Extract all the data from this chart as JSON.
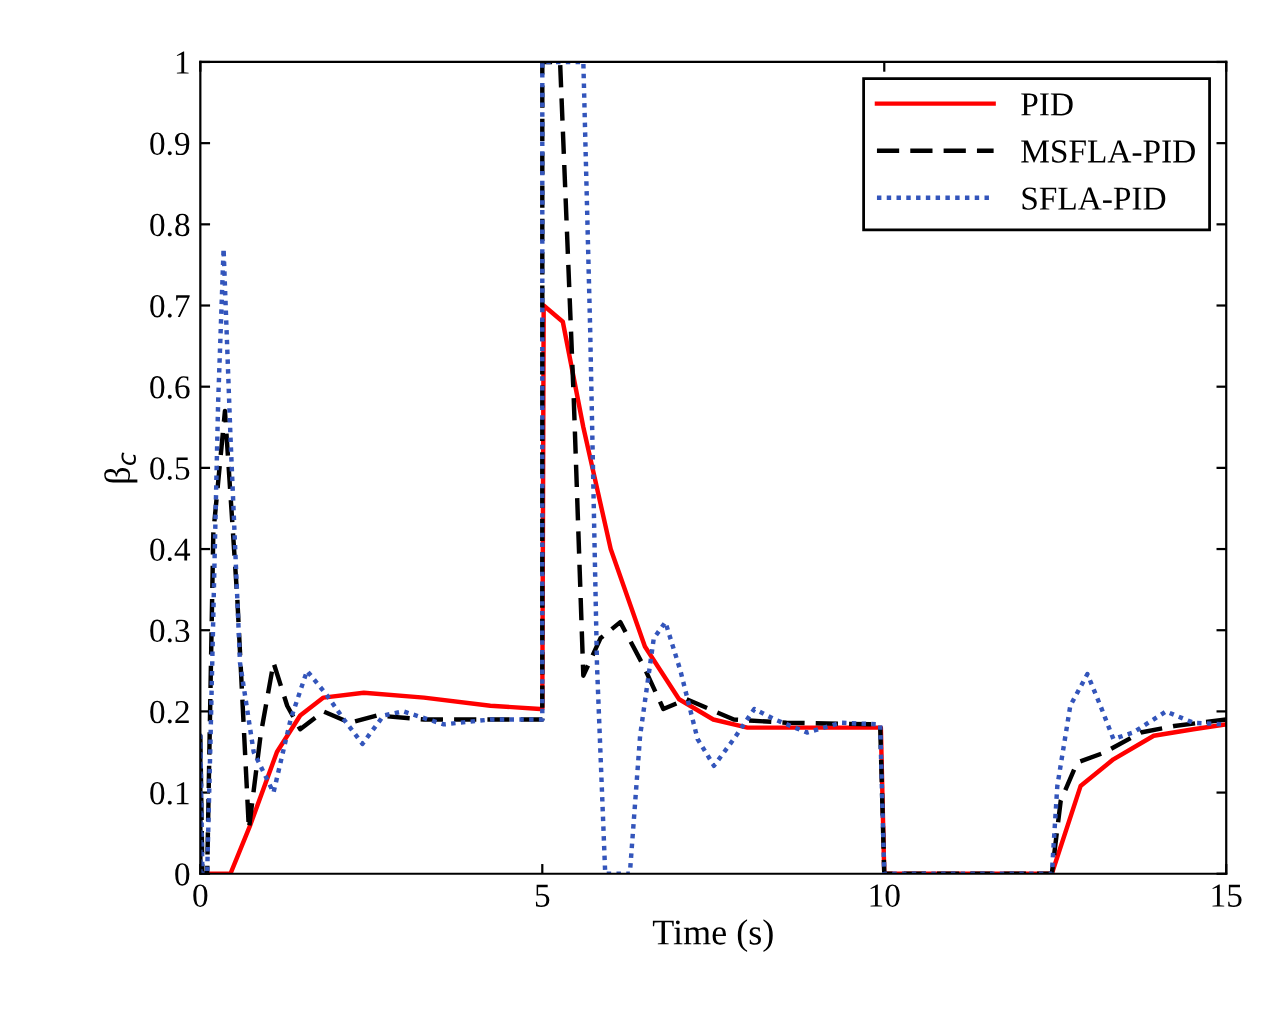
{
  "chart_data": {
    "type": "line",
    "xlabel": "Time (s)",
    "ylabel": "β$_{c}$",
    "xlim": [
      0,
      15
    ],
    "ylim": [
      0,
      1
    ],
    "xticks": [
      0,
      5,
      10,
      15
    ],
    "yticks": [
      0,
      0.1,
      0.2,
      0.3,
      0.4,
      0.5,
      0.6,
      0.7,
      0.8,
      0.9,
      1
    ],
    "grid": false,
    "legend": "top right",
    "marker": "none",
    "series": [
      {
        "name": "PID",
        "color": "#ff0000",
        "line_style": "solid",
        "x": [
          0,
          0.44,
          0.73,
          1.12,
          1.46,
          1.8,
          2.39,
          3.27,
          4.24,
          4.97,
          5,
          5.02,
          5.3,
          5.6,
          6,
          6.5,
          7,
          7.5,
          8,
          9,
          9.95,
          10,
          12.45,
          12.87,
          13.35,
          13.94,
          14.52,
          15
        ],
        "values": [
          0,
          0,
          0.06,
          0.15,
          0.195,
          0.217,
          0.223,
          0.217,
          0.207,
          0.203,
          0.203,
          0.7,
          0.68,
          0.55,
          0.4,
          0.28,
          0.215,
          0.19,
          0.18,
          0.18,
          0.18,
          0,
          0,
          0.108,
          0.141,
          0.17,
          0.178,
          0.184
        ]
      },
      {
        "name": "MSFLA-PID",
        "color": "#000000",
        "line_style": "dashed",
        "x": [
          0,
          0,
          0.03,
          0.1,
          0.19,
          0.36,
          0.54,
          0.71,
          0.88,
          1.07,
          1.27,
          1.46,
          1.8,
          2.19,
          2.58,
          3.27,
          4.97,
          5,
          5,
          5.26,
          5.46,
          5.6,
          5.85,
          6.14,
          6.48,
          6.77,
          7.11,
          7.8,
          8.57,
          9.94,
          10,
          12.45,
          12.58,
          12.82,
          13.21,
          13.75,
          14.24,
          15
        ],
        "values": [
          0,
          0.17,
          0,
          0,
          0.42,
          0.57,
          0.34,
          0.055,
          0.17,
          0.26,
          0.207,
          0.178,
          0.2,
          0.186,
          0.195,
          0.19,
          0.19,
          0.19,
          1,
          1,
          0.585,
          0.244,
          0.29,
          0.31,
          0.256,
          0.203,
          0.215,
          0.19,
          0.186,
          0.184,
          0,
          0,
          0.09,
          0.137,
          0.149,
          0.174,
          0.182,
          0.19
        ]
      },
      {
        "name": "SFLA-PID",
        "color": "#3355bb",
        "line_style": "dotted",
        "x": [
          0,
          0,
          0.03,
          0.1,
          0.15,
          0.26,
          0.34,
          0.44,
          0.58,
          0.78,
          1.07,
          1.32,
          1.56,
          1.85,
          2.1,
          2.37,
          2.68,
          2.97,
          3.56,
          4.24,
          4.97,
          5,
          5,
          5.6,
          5.7,
          5.8,
          5.92,
          6.28,
          6.43,
          6.63,
          6.8,
          7.02,
          7.27,
          7.51,
          7.8,
          8.1,
          8.4,
          8.87,
          9.36,
          9.94,
          10,
          12.45,
          12.53,
          12.72,
          12.97,
          13.16,
          13.35,
          13.64,
          14.12,
          14.52,
          15
        ],
        "values": [
          0,
          0.17,
          0,
          0,
          0.17,
          0.58,
          0.77,
          0.54,
          0.26,
          0.15,
          0.1,
          0.19,
          0.25,
          0.22,
          0.19,
          0.16,
          0.195,
          0.2,
          0.184,
          0.19,
          0.19,
          0.19,
          1,
          1,
          0.67,
          0.256,
          0,
          0,
          0.17,
          0.29,
          0.31,
          0.25,
          0.166,
          0.133,
          0.166,
          0.203,
          0.19,
          0.174,
          0.186,
          0.184,
          0,
          0,
          0.108,
          0.207,
          0.246,
          0.207,
          0.166,
          0.174,
          0.2,
          0.186,
          0.184
        ]
      }
    ]
  }
}
